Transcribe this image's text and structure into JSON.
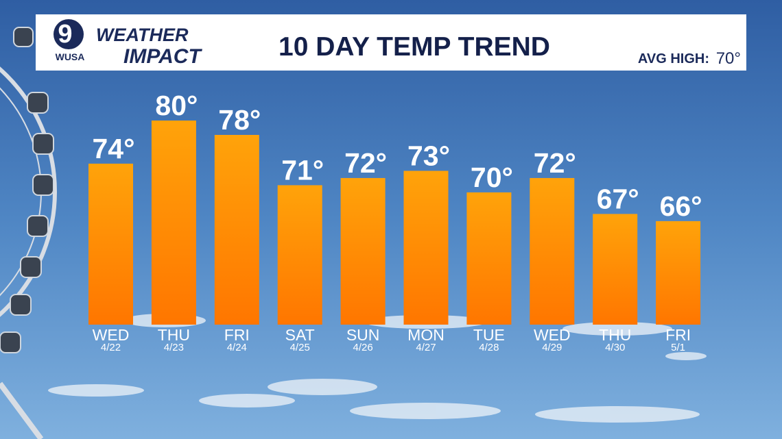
{
  "header": {
    "logo_number": "9",
    "logo_station": "WUSA",
    "brand_top": "WEATHER",
    "brand_bottom": "IMPACT",
    "avg_high_label": "AVG HIGH:",
    "avg_high_value": "70°"
  },
  "chart_data": {
    "type": "bar",
    "title": "10 DAY TEMP TREND",
    "categories": [
      "WED",
      "THU",
      "FRI",
      "SAT",
      "SUN",
      "MON",
      "TUE",
      "WED",
      "THU",
      "FRI"
    ],
    "dates": [
      "4/22",
      "4/23",
      "4/24",
      "4/25",
      "4/26",
      "4/27",
      "4/28",
      "4/29",
      "4/30",
      "5/1"
    ],
    "values": [
      74,
      80,
      78,
      71,
      72,
      73,
      70,
      72,
      67,
      66
    ],
    "value_labels": [
      "74°",
      "80°",
      "78°",
      "71°",
      "72°",
      "73°",
      "70°",
      "72°",
      "67°",
      "66°"
    ],
    "color": "#ff8c00",
    "ylim": [
      51.6,
      80
    ]
  }
}
